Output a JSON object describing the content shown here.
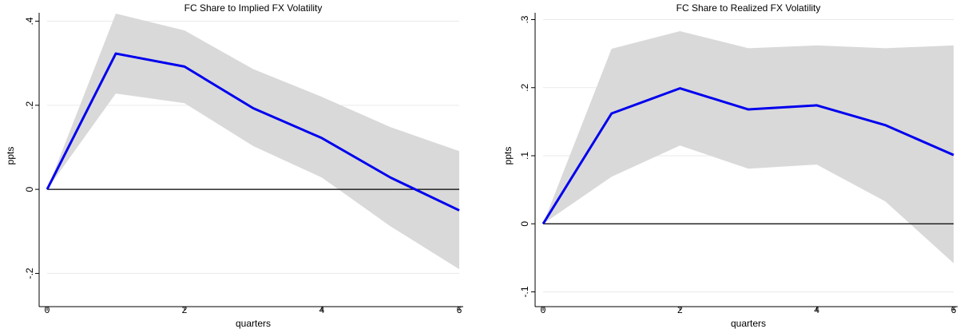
{
  "chart_data": [
    {
      "type": "line",
      "title": "FC Share to Implied FX Volatility",
      "xlabel": "quarters",
      "ylabel": "ppts",
      "xlim": [
        0,
        6
      ],
      "ylim": [
        -0.26,
        0.42
      ],
      "x_ticks": [
        0,
        2,
        4,
        6
      ],
      "x_tick_labels": [
        "0",
        "2",
        "4",
        "6"
      ],
      "y_ticks": [
        -0.2,
        0,
        0.2,
        0.4
      ],
      "y_tick_labels": [
        "-.2",
        "0",
        ".2",
        ".4"
      ],
      "grid": "horizontal",
      "x": [
        0,
        1,
        2,
        3,
        4,
        5,
        6
      ],
      "series": [
        {
          "values": [
            0,
            0.323,
            0.292,
            0.193,
            0.122,
            0.028,
            -0.05
          ]
        }
      ],
      "band_upper": [
        0,
        0.418,
        0.378,
        0.286,
        0.22,
        0.148,
        0.091
      ],
      "band_lower": [
        0,
        0.228,
        0.205,
        0.103,
        0.028,
        -0.088,
        -0.19
      ],
      "reference_line_y": 0,
      "colors": {
        "line": "#0000ee",
        "band": "#d9d9d9",
        "reference": "#000000",
        "grid": "#eaeaea"
      }
    },
    {
      "type": "line",
      "title": "FC Share to Realized FX Volatility",
      "xlabel": "quarters",
      "ylabel": "ppts",
      "xlim": [
        0,
        6
      ],
      "ylim": [
        -0.11,
        0.31
      ],
      "x_ticks": [
        0,
        2,
        4,
        6
      ],
      "x_tick_labels": [
        "0",
        "2",
        "4",
        "6"
      ],
      "y_ticks": [
        -0.1,
        0,
        0.1,
        0.2,
        0.3
      ],
      "y_tick_labels": [
        "-.1",
        "0",
        ".1",
        ".2",
        ".3"
      ],
      "grid": "horizontal",
      "x": [
        0,
        1,
        2,
        3,
        4,
        5,
        6
      ],
      "series": [
        {
          "values": [
            0,
            0.162,
            0.199,
            0.168,
            0.174,
            0.145,
            0.101
          ]
        }
      ],
      "band_upper": [
        0,
        0.257,
        0.283,
        0.258,
        0.262,
        0.258,
        0.262
      ],
      "band_lower": [
        0,
        0.069,
        0.115,
        0.081,
        0.087,
        0.033,
        -0.058
      ],
      "reference_line_y": 0,
      "colors": {
        "line": "#0000ee",
        "band": "#d9d9d9",
        "reference": "#000000",
        "grid": "#eaeaea"
      }
    }
  ]
}
